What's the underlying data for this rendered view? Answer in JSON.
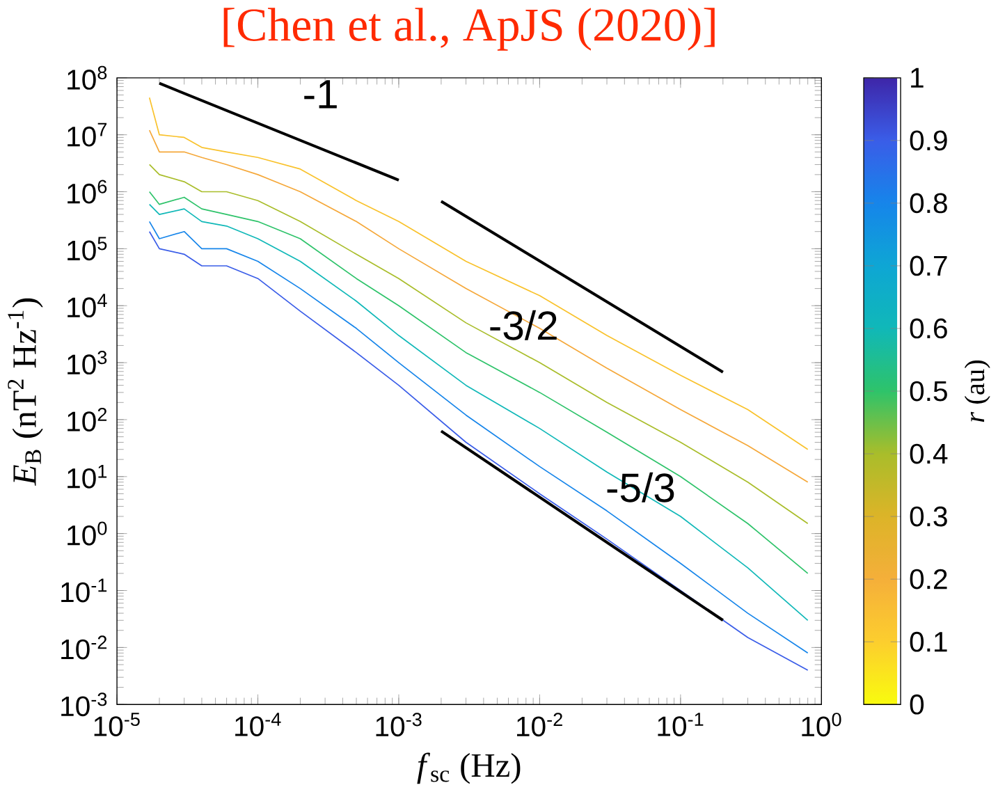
{
  "chart_data": {
    "type": "line",
    "title": "[Chen et al., ApJS (2020)]",
    "xlabel": "*f*$_{sc}$ (Hz)",
    "ylabel": "*E*$_{B}$ (nT$^{2}$ Hz$^{-1}$)",
    "clabel": "*r* (au)",
    "log": "xy",
    "xlim": [
      1e-05,
      1
    ],
    "ylim": [
      0.001,
      100000000
    ],
    "xticks": [
      {
        "value": 1e-05,
        "label": "10$^{-5}$"
      },
      {
        "value": 0.0001,
        "label": "10$^{-4}$"
      },
      {
        "value": 0.001,
        "label": "10$^{-3}$"
      },
      {
        "value": 0.01,
        "label": "10$^{-2}$"
      },
      {
        "value": 0.1,
        "label": "10$^{-1}$"
      },
      {
        "value": 1,
        "label": "10$^{0}$"
      }
    ],
    "yticks": [
      {
        "value": 0.001,
        "label": "10$^{-3}$"
      },
      {
        "value": 0.01,
        "label": "10$^{-2}$"
      },
      {
        "value": 0.1,
        "label": "10$^{-1}$"
      },
      {
        "value": 1,
        "label": "10$^{0}$"
      },
      {
        "value": 10,
        "label": "10$^{1}$"
      },
      {
        "value": 100,
        "label": "10$^{2}$"
      },
      {
        "value": 1000,
        "label": "10$^{3}$"
      },
      {
        "value": 10000,
        "label": "10$^{4}$"
      },
      {
        "value": 100000,
        "label": "10$^{5}$"
      },
      {
        "value": 1000000,
        "label": "10$^{6}$"
      },
      {
        "value": 10000000,
        "label": "10$^{7}$"
      },
      {
        "value": 100000000,
        "label": "10$^{8}$"
      }
    ],
    "clim": [
      0,
      1
    ],
    "cticks": [
      0,
      0.1,
      0.2,
      0.3,
      0.4,
      0.5,
      0.6,
      0.7,
      0.8,
      0.9,
      1
    ],
    "series": [
      {
        "color": "#f9c22c",
        "x": [
          1.7e-05,
          2e-05,
          3e-05,
          4e-05,
          6e-05,
          0.0001,
          0.0002,
          0.0005,
          0.001,
          0.003,
          0.01,
          0.03,
          0.1,
          0.3,
          0.8
        ],
        "values": [
          45000000,
          10000000,
          9000000,
          6000000,
          5000000,
          4000000,
          2500000,
          700000,
          300000,
          60000,
          15000,
          3000,
          600,
          150,
          30
        ]
      },
      {
        "color": "#f5a83a",
        "x": [
          1.7e-05,
          2e-05,
          3e-05,
          4e-05,
          6e-05,
          0.0001,
          0.0002,
          0.0005,
          0.001,
          0.003,
          0.01,
          0.03,
          0.1,
          0.3,
          0.8
        ],
        "values": [
          12000000,
          5000000,
          5000000,
          4000000,
          3000000,
          2000000,
          1000000,
          300000,
          100000,
          20000,
          4000,
          800,
          150,
          35,
          8
        ]
      },
      {
        "color": "#a9bd2a",
        "x": [
          1.7e-05,
          2e-05,
          3e-05,
          4e-05,
          6e-05,
          0.0001,
          0.0002,
          0.0005,
          0.001,
          0.003,
          0.01,
          0.03,
          0.1,
          0.3,
          0.8
        ],
        "values": [
          3000000,
          2000000,
          1500000,
          1000000,
          1000000,
          700000,
          300000,
          80000,
          30000,
          5000,
          1000,
          200,
          40,
          8,
          1.5
        ]
      },
      {
        "color": "#2ec36a",
        "x": [
          1.7e-05,
          2e-05,
          3e-05,
          4e-05,
          6e-05,
          0.0001,
          0.0002,
          0.0005,
          0.001,
          0.003,
          0.01,
          0.03,
          0.1,
          0.3,
          0.8
        ],
        "values": [
          1000000,
          600000,
          800000,
          500000,
          400000,
          300000,
          150000,
          30000,
          10000,
          1500,
          300,
          60,
          10,
          1.5,
          0.2
        ]
      },
      {
        "color": "#10b8b8",
        "x": [
          1.7e-05,
          2e-05,
          3e-05,
          4e-05,
          6e-05,
          0.0001,
          0.0002,
          0.0005,
          0.001,
          0.003,
          0.01,
          0.03,
          0.1,
          0.3,
          0.8
        ],
        "values": [
          600000,
          400000,
          500000,
          300000,
          250000,
          150000,
          60000,
          12000,
          3000,
          400,
          70,
          12,
          2,
          0.25,
          0.03
        ]
      },
      {
        "color": "#1685ea",
        "x": [
          1.7e-05,
          2e-05,
          3e-05,
          4e-05,
          6e-05,
          0.0001,
          0.0002,
          0.0005,
          0.001,
          0.003,
          0.01,
          0.03,
          0.1,
          0.3,
          0.8
        ],
        "values": [
          300000,
          150000,
          200000,
          100000,
          100000,
          60000,
          20000,
          4000,
          1000,
          120,
          15,
          2.5,
          0.3,
          0.04,
          0.008
        ]
      },
      {
        "color": "#3a5de8",
        "x": [
          1.7e-05,
          2e-05,
          3e-05,
          4e-05,
          6e-05,
          0.0001,
          0.0002,
          0.0005,
          0.001,
          0.003,
          0.01,
          0.03,
          0.1,
          0.3,
          0.8
        ],
        "values": [
          200000,
          100000,
          80000,
          50000,
          50000,
          30000,
          8000,
          1500,
          400,
          40,
          5,
          0.8,
          0.1,
          0.015,
          0.004
        ]
      },
      {
        "name": "-1",
        "color": "#000000",
        "x": [
          2e-05,
          0.001
        ],
        "values": [
          80000000,
          1600000
        ]
      },
      {
        "name": "-3/2",
        "color": "#000000",
        "x": [
          0.002,
          0.2
        ],
        "values": [
          680000,
          680
        ]
      },
      {
        "name": "-5/3",
        "color": "#000000",
        "x": [
          0.002,
          0.2
        ],
        "values": [
          63,
          0.03
        ]
      }
    ]
  }
}
